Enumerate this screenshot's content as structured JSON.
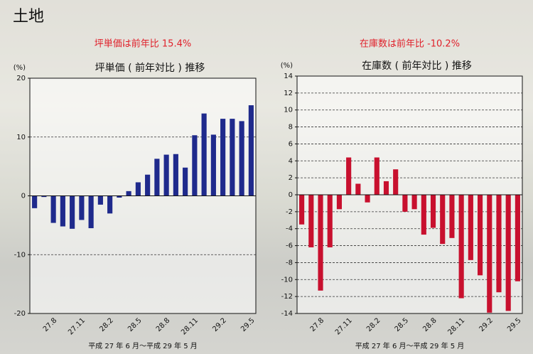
{
  "title": "土地",
  "chart_data": [
    {
      "type": "bar",
      "title": "坪単価 ( 前年対比 ) 推移",
      "annotation": "坪単価は前年比 15.4%",
      "y_label": "(%)",
      "footer": "平成 27 年 6 月〜平成 29 年 5 月",
      "categories": [
        null,
        null,
        "27.8",
        null,
        null,
        "27.11",
        null,
        null,
        "28.2",
        null,
        null,
        "28.5",
        null,
        null,
        "28.8",
        null,
        null,
        "28.11",
        null,
        null,
        "29.2",
        null,
        null,
        "29.5"
      ],
      "values": [
        -2.1,
        -0.2,
        -4.6,
        -5.2,
        -5.6,
        -4.1,
        -5.5,
        -1.5,
        -3.0,
        -0.3,
        0.8,
        2.3,
        3.6,
        6.3,
        7.0,
        7.1,
        4.8,
        10.3,
        14.0,
        10.4,
        13.1,
        13.1,
        12.7,
        15.4
      ],
      "color": "#1f2a8c",
      "ylim": [
        -20,
        20
      ],
      "yticks": [
        -20,
        -10,
        0,
        10,
        20
      ],
      "grid": true
    },
    {
      "type": "bar",
      "title": "在庫数 ( 前年対比 ) 推移",
      "annotation": "在庫数は前年比 -10.2%",
      "y_label": "(%)",
      "footer": "平成 27 年 6 月〜平成 29 年 5 月",
      "categories": [
        null,
        null,
        "27.8",
        null,
        null,
        "27.11",
        null,
        null,
        "28.2",
        null,
        null,
        "28.5",
        null,
        null,
        "28.8",
        null,
        null,
        "28.11",
        null,
        null,
        "29.2",
        null,
        null,
        "29.5"
      ],
      "values": [
        -3.5,
        -6.2,
        -11.3,
        -6.2,
        -1.7,
        4.4,
        1.3,
        -0.9,
        4.4,
        1.6,
        3.0,
        -2.0,
        -1.7,
        -4.7,
        -3.9,
        -5.8,
        -5.1,
        -12.2,
        -7.7,
        -9.5,
        -13.9,
        -11.5,
        -13.7,
        -10.2
      ],
      "color": "#c8102e",
      "ylim": [
        -14,
        14
      ],
      "yticks": [
        -14,
        -12,
        -10,
        -8,
        -6,
        -4,
        -2,
        0,
        2,
        4,
        6,
        8,
        10,
        12,
        14
      ],
      "grid": true
    }
  ]
}
